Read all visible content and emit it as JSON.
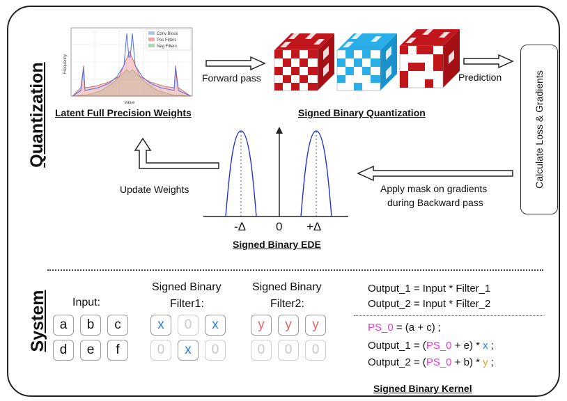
{
  "sections": {
    "quantization_label": "Quantization",
    "system_label": "System"
  },
  "histogram": {
    "legend": [
      "Conv Block",
      "Pos Filters",
      "Neg Filters"
    ],
    "colors": [
      "#6a8fe8",
      "#e86a6a",
      "#6ac46a"
    ],
    "xlabel": "Value",
    "ylabel": "Frequency"
  },
  "captions": {
    "latent": "Latent Full Precision Weights",
    "sbq": "Signed Binary Quantization",
    "ede": "Signed Binary EDE",
    "kernel": "Signed Binary Kernel"
  },
  "arrows": {
    "forward": "Forward pass",
    "prediction": "Prediction",
    "update": "Update Weights",
    "mask_line1": "Apply mask on gradients",
    "mask_line2": "during Backward pass"
  },
  "sidebox": "Calculate Loss & Gradients",
  "ede_axis": {
    "neg": "-Δ",
    "zero": "0",
    "pos": "+Δ"
  },
  "system": {
    "input_title": "Input:",
    "input_cells": [
      "a",
      "b",
      "c",
      "d",
      "e",
      "f"
    ],
    "filter1_title_line1": "Signed Binary",
    "filter1_title_line2": "Filter1:",
    "filter1_cells": [
      "x",
      "0",
      "x",
      "0",
      "x",
      "0"
    ],
    "filter2_title_line1": "Signed Binary",
    "filter2_title_line2": "Filter2:",
    "filter2_cells": [
      "y",
      "y",
      "y",
      "0",
      "0",
      "0"
    ]
  },
  "kernel_code": {
    "line1": "Output_1 = Input * Filter_1",
    "line2": "Output_2 = Input * Filter_2",
    "ps_name": "PS_0",
    "ps_rhs": " = (a + c) ;",
    "out1_lhs": "Output_1 = (",
    "out1_mid": " + e) * ",
    "out1_var": "x",
    "out1_end": " ;",
    "out2_lhs": "Output_2 = (",
    "out2_mid": " + b) * ",
    "out2_var": "y",
    "out2_end": " ;"
  },
  "colors": {
    "red_cube": "#c0161c",
    "blue_cube": "#29aee8",
    "ede_curve": "#2233cc",
    "pink": "#ee33dd",
    "filter_blue": "#1f7fe0",
    "filter_red": "#e46565"
  }
}
